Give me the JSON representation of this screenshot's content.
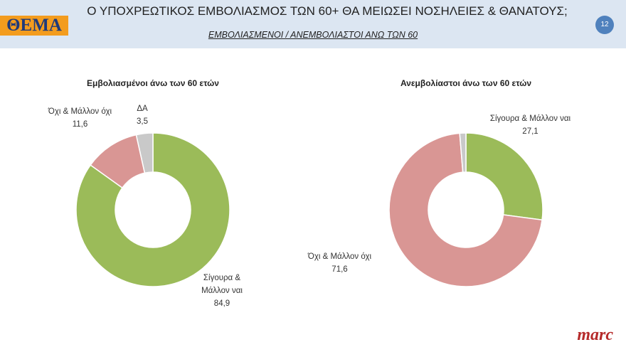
{
  "header": {
    "logo": "ΘΕΜΑ",
    "title": "Ο ΥΠΟΧΡΕΩΤΙΚΟΣ ΕΜΒΟΛΙΑΣΜΟΣ ΤΩΝ 60+ ΘΑ ΜΕΙΩΣΕΙ ΝΟΣΗΛΕΙΕΣ & ΘΑΝΑΤΟΥΣ;",
    "subtitle": "ΕΜΒΟΛΙΑΣΜΕΝΟΙ / ΑΝΕΜΒΟΛΙΑΣΤΟΙ ΑΝΩ ΤΩΝ 60",
    "page_number": "12"
  },
  "chart_data": [
    {
      "type": "donut",
      "title": "Εμβολιασμένοι άνω των 60 ετών",
      "categories": [
        "Σίγουρα & Μάλλον ναι",
        "Όχι & Μάλλον όχι",
        "ΔΑ"
      ],
      "values": [
        84.9,
        11.6,
        3.5
      ],
      "value_labels": [
        "84,9",
        "11,6",
        "3,5"
      ],
      "colors": [
        "#9bbb59",
        "#d99694",
        "#c9c9c9"
      ]
    },
    {
      "type": "donut",
      "title": "Ανεμβολίαστοι άνω των 60 ετών",
      "categories": [
        "Σίγουρα & Μάλλον ναι",
        "Όχι & Μάλλον όχι",
        null
      ],
      "values": [
        27.1,
        71.6,
        1.3
      ],
      "value_labels": [
        "27,1",
        "71,6",
        null
      ],
      "colors": [
        "#9bbb59",
        "#d99694",
        "#c9c9c9"
      ]
    }
  ],
  "footer": {
    "logo": "marc"
  }
}
